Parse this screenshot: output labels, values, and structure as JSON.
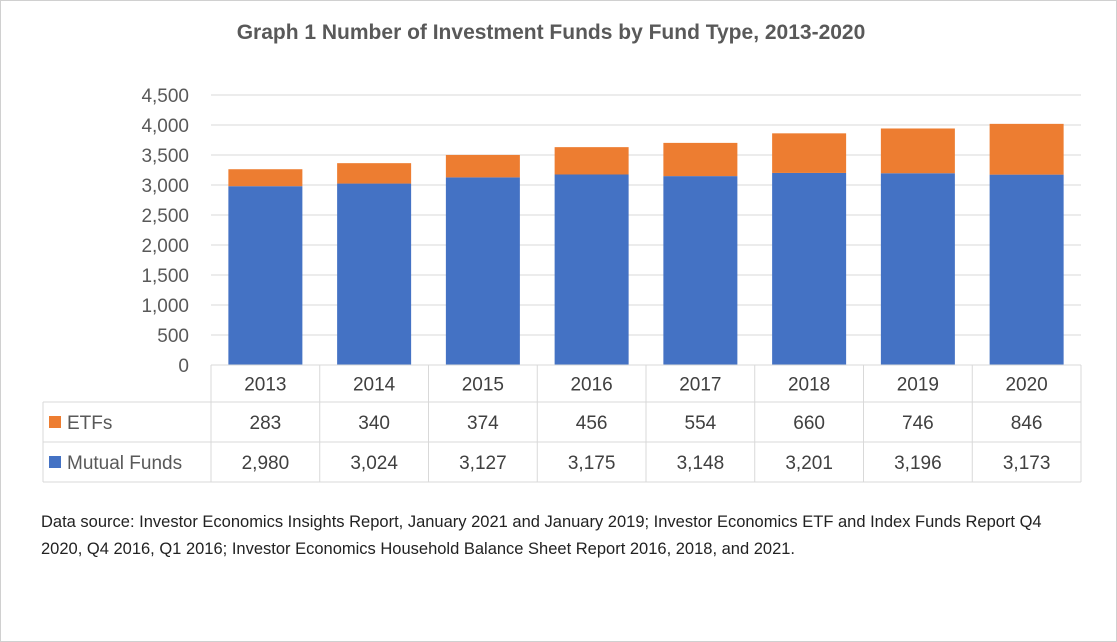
{
  "chart_data": {
    "type": "bar",
    "stacked": true,
    "title": "Graph 1 Number of Investment Funds by Fund Type, 2013-2020",
    "categories": [
      "2013",
      "2014",
      "2015",
      "2016",
      "2017",
      "2018",
      "2019",
      "2020"
    ],
    "series": [
      {
        "name": "Mutual Funds",
        "color": "#4472C4",
        "values": [
          2980,
          3024,
          3127,
          3175,
          3148,
          3201,
          3196,
          3173
        ],
        "labels": [
          "2,980",
          "3,024",
          "3,127",
          "3,175",
          "3,148",
          "3,201",
          "3,196",
          "3,173"
        ]
      },
      {
        "name": "ETFs",
        "color": "#ED7D31",
        "values": [
          283,
          340,
          374,
          456,
          554,
          660,
          746,
          846
        ],
        "labels": [
          "283",
          "340",
          "374",
          "456",
          "554",
          "660",
          "746",
          "846"
        ]
      }
    ],
    "ylim": [
      0,
      4500
    ],
    "yticks": [
      0,
      500,
      1000,
      1500,
      2000,
      2500,
      3000,
      3500,
      4000,
      4500
    ],
    "ytick_labels": [
      "0",
      "500",
      "1,000",
      "1,500",
      "2,000",
      "2,500",
      "3,000",
      "3,500",
      "4,000",
      "4,500"
    ],
    "grid": true,
    "legend": "data-table",
    "data_table": true,
    "source": "Data source: Investor Economics Insights Report, January 2021 and January 2019;  Investor Economics ETF and Index Funds Report Q4 2020, Q4 2016, Q1 2016; Investor Economics Household Balance Sheet Report 2016, 2018, and 2021."
  }
}
